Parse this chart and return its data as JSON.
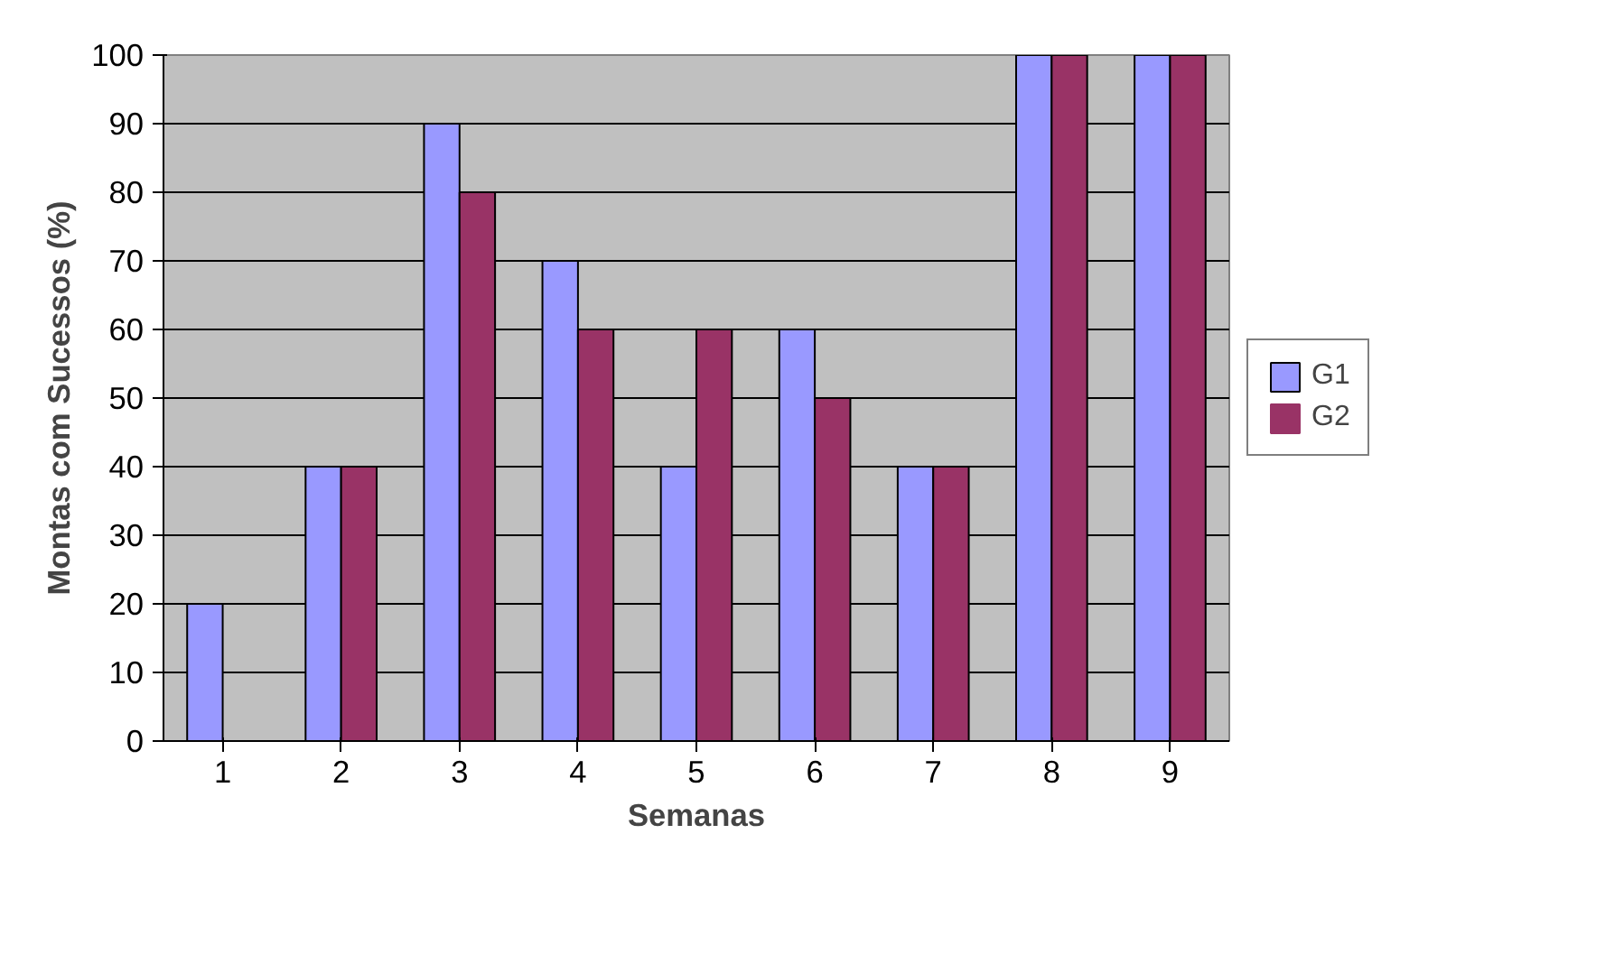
{
  "chart_data": {
    "type": "bar",
    "xlabel": "Semanas",
    "ylabel": "Montas com Sucessos (%)",
    "categories": [
      "1",
      "2",
      "3",
      "4",
      "5",
      "6",
      "7",
      "8",
      "9"
    ],
    "series": [
      {
        "name": "G1",
        "color": "#9999ff",
        "values": [
          20,
          40,
          90,
          70,
          40,
          60,
          40,
          100,
          100
        ]
      },
      {
        "name": "G2",
        "color": "#993366",
        "values": [
          0,
          40,
          80,
          60,
          60,
          50,
          40,
          100,
          100
        ]
      }
    ],
    "ylim": [
      0,
      100
    ],
    "yticks": [
      0,
      10,
      20,
      30,
      40,
      50,
      60,
      70,
      80,
      90,
      100
    ],
    "grid": "y",
    "legend": "right"
  }
}
